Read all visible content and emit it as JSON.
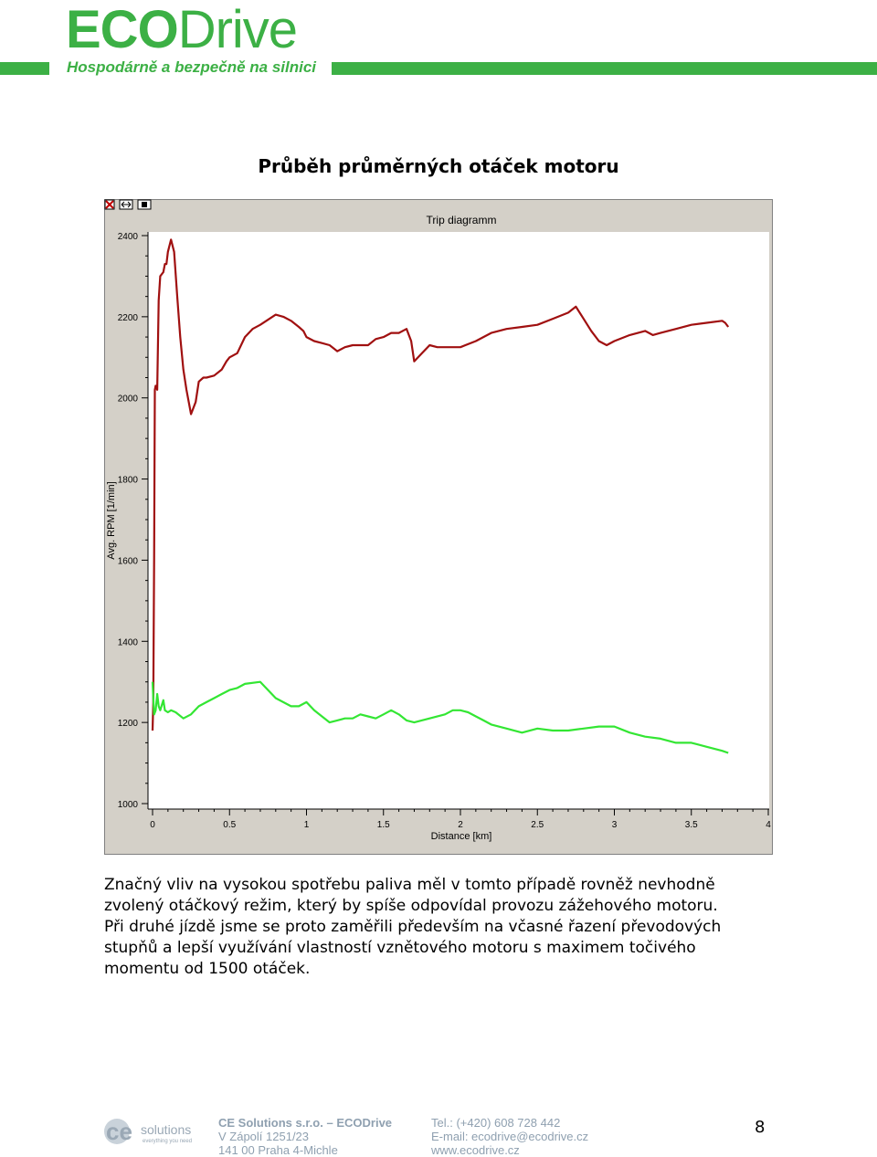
{
  "header": {
    "logo_eco": "ECO",
    "logo_drive": "Drive",
    "tagline": "Hospodárně a bezpečně na silnici",
    "brand_color": "#3cb045"
  },
  "heading": "Průběh průměrných otáček motoru",
  "chart_data": {
    "type": "line",
    "title": "Trip diagramm",
    "xlabel": "Distance [km]",
    "ylabel": "Avg. RPM [1/min]",
    "xlim": [
      0,
      4
    ],
    "ylim": [
      1000,
      2450
    ],
    "x_ticks": [
      "0",
      "0.5",
      "1",
      "1.5",
      "2",
      "2.5",
      "3",
      "3.5",
      "4"
    ],
    "y_ticks": [
      "1000",
      "1200",
      "1400",
      "1600",
      "1800",
      "2000",
      "2200",
      "2400"
    ],
    "grid": false,
    "series": [
      {
        "color": "#a01010",
        "x": [
          0.0,
          0.005,
          0.01,
          0.015,
          0.02,
          0.03,
          0.04,
          0.05,
          0.07,
          0.08,
          0.09,
          0.1,
          0.12,
          0.14,
          0.16,
          0.18,
          0.2,
          0.22,
          0.25,
          0.28,
          0.3,
          0.33,
          0.35,
          0.4,
          0.45,
          0.48,
          0.5,
          0.55,
          0.6,
          0.65,
          0.7,
          0.8,
          0.85,
          0.9,
          0.95,
          0.98,
          1.0,
          1.05,
          1.1,
          1.15,
          1.2,
          1.25,
          1.3,
          1.4,
          1.45,
          1.5,
          1.55,
          1.6,
          1.65,
          1.68,
          1.7,
          1.75,
          1.8,
          1.85,
          2.0,
          2.1,
          2.2,
          2.3,
          2.4,
          2.5,
          2.6,
          2.7,
          2.75,
          2.8,
          2.85,
          2.9,
          2.95,
          3.0,
          3.1,
          3.2,
          3.25,
          3.3,
          3.4,
          3.5,
          3.6,
          3.7,
          3.72,
          3.74
        ],
        "values": [
          1180,
          1250,
          1600,
          2020,
          2030,
          2020,
          2240,
          2300,
          2310,
          2330,
          2330,
          2360,
          2390,
          2360,
          2250,
          2150,
          2070,
          2020,
          1960,
          1990,
          2040,
          2050,
          2050,
          2055,
          2070,
          2090,
          2100,
          2110,
          2150,
          2170,
          2180,
          2205,
          2200,
          2190,
          2175,
          2165,
          2150,
          2140,
          2135,
          2130,
          2115,
          2125,
          2130,
          2130,
          2145,
          2150,
          2160,
          2160,
          2170,
          2140,
          2090,
          2110,
          2130,
          2125,
          2125,
          2140,
          2160,
          2170,
          2175,
          2180,
          2195,
          2210,
          2225,
          2195,
          2165,
          2140,
          2130,
          2140,
          2155,
          2165,
          2155,
          2160,
          2170,
          2180,
          2185,
          2190,
          2185,
          2175
        ]
      },
      {
        "color": "#33e633",
        "x": [
          0.0,
          0.005,
          0.01,
          0.02,
          0.03,
          0.04,
          0.05,
          0.07,
          0.08,
          0.1,
          0.12,
          0.15,
          0.2,
          0.25,
          0.3,
          0.35,
          0.4,
          0.45,
          0.5,
          0.55,
          0.6,
          0.7,
          0.8,
          0.9,
          0.95,
          1.0,
          1.05,
          1.1,
          1.15,
          1.2,
          1.25,
          1.3,
          1.35,
          1.4,
          1.45,
          1.5,
          1.55,
          1.6,
          1.65,
          1.7,
          1.8,
          1.9,
          1.95,
          2.0,
          2.05,
          2.1,
          2.15,
          2.2,
          2.3,
          2.4,
          2.5,
          2.6,
          2.7,
          2.8,
          2.9,
          3.0,
          3.1,
          3.2,
          3.3,
          3.4,
          3.5,
          3.6,
          3.7,
          3.74
        ],
        "values": [
          1300,
          1260,
          1220,
          1230,
          1270,
          1240,
          1230,
          1255,
          1230,
          1225,
          1230,
          1225,
          1210,
          1220,
          1240,
          1250,
          1260,
          1270,
          1280,
          1285,
          1295,
          1300,
          1260,
          1240,
          1240,
          1250,
          1230,
          1215,
          1200,
          1205,
          1210,
          1210,
          1220,
          1215,
          1210,
          1220,
          1230,
          1220,
          1205,
          1200,
          1210,
          1220,
          1230,
          1230,
          1225,
          1215,
          1205,
          1195,
          1185,
          1175,
          1185,
          1180,
          1180,
          1185,
          1190,
          1190,
          1175,
          1165,
          1160,
          1150,
          1150,
          1140,
          1130,
          1125
        ]
      }
    ]
  },
  "paragraph": {
    "line1": "Značný vliv na vysokou spotřebu paliva měl v tomto případě rovněž nevhodně",
    "line2": "zvolený otáčkový režim, který by spíše odpovídal provozu zážehového motoru.",
    "line3": "Při druhé jízdě jsme se proto zaměřili především na včasné řazení převodových",
    "line4": "stupňů a lepší využívání vlastností vznětového motoru s maximem točivého",
    "line5": "momentu od 1500 otáček."
  },
  "footer": {
    "company": "CE Solutions s.r.o.",
    "dash": "–",
    "brand": "ECODrive",
    "street": "V Zápolí 1251/23",
    "city": "141 00 Praha 4-Michle",
    "phone": "Tel.: (+420) 608 728 442",
    "email": "E-mail: ecodrive@ecodrive.cz",
    "web": "www.ecodrive.cz",
    "logo_ce": "ce",
    "logo_solutions": "solutions",
    "logo_slogan": "everything you need",
    "page_number": "8"
  }
}
